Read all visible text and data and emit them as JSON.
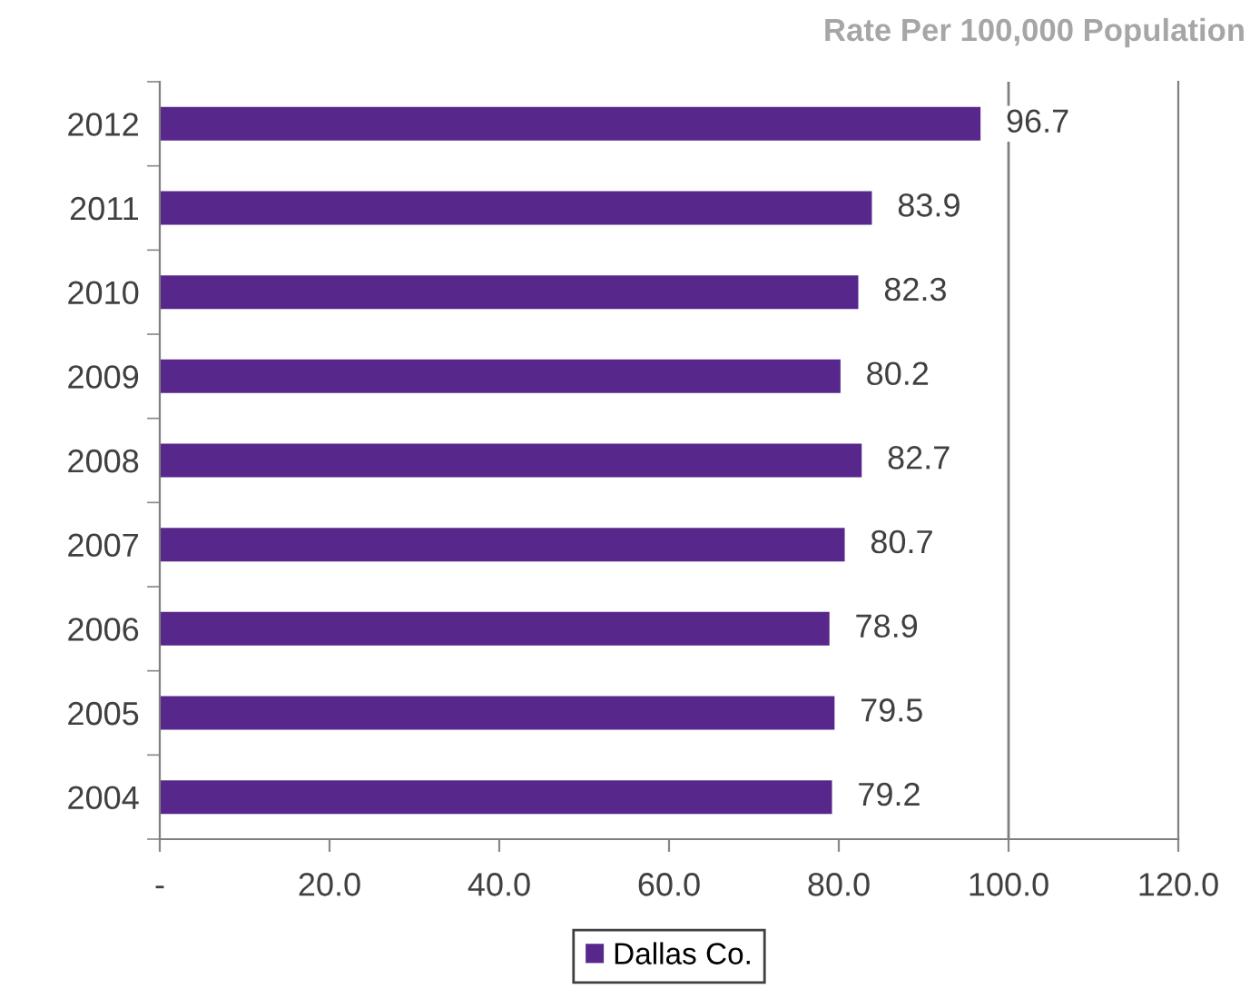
{
  "chart_data": {
    "type": "bar",
    "orientation": "horizontal",
    "subtitle": "Rate Per 100,000 Population",
    "categories": [
      "2012",
      "2011",
      "2010",
      "2009",
      "2008",
      "2007",
      "2006",
      "2005",
      "2004"
    ],
    "series": [
      {
        "name": "Dallas Co.",
        "color": "#58278b",
        "values": [
          96.7,
          83.9,
          82.3,
          80.2,
          82.7,
          80.7,
          78.9,
          79.5,
          79.2
        ]
      }
    ],
    "data_labels": true,
    "xlim": [
      0,
      120
    ],
    "xticks": [
      {
        "value": 0,
        "label": "-"
      },
      {
        "value": 20,
        "label": "20.0"
      },
      {
        "value": 40,
        "label": "40.0"
      },
      {
        "value": 60,
        "label": "60.0"
      },
      {
        "value": 80,
        "label": "80.0"
      },
      {
        "value": 100,
        "label": "100.0"
      },
      {
        "value": 120,
        "label": "120.0"
      }
    ],
    "ref_lines": [
      {
        "axis": "x",
        "value": 100,
        "color": "#7f7f7f"
      }
    ],
    "grid": false,
    "legend": "bottom"
  }
}
